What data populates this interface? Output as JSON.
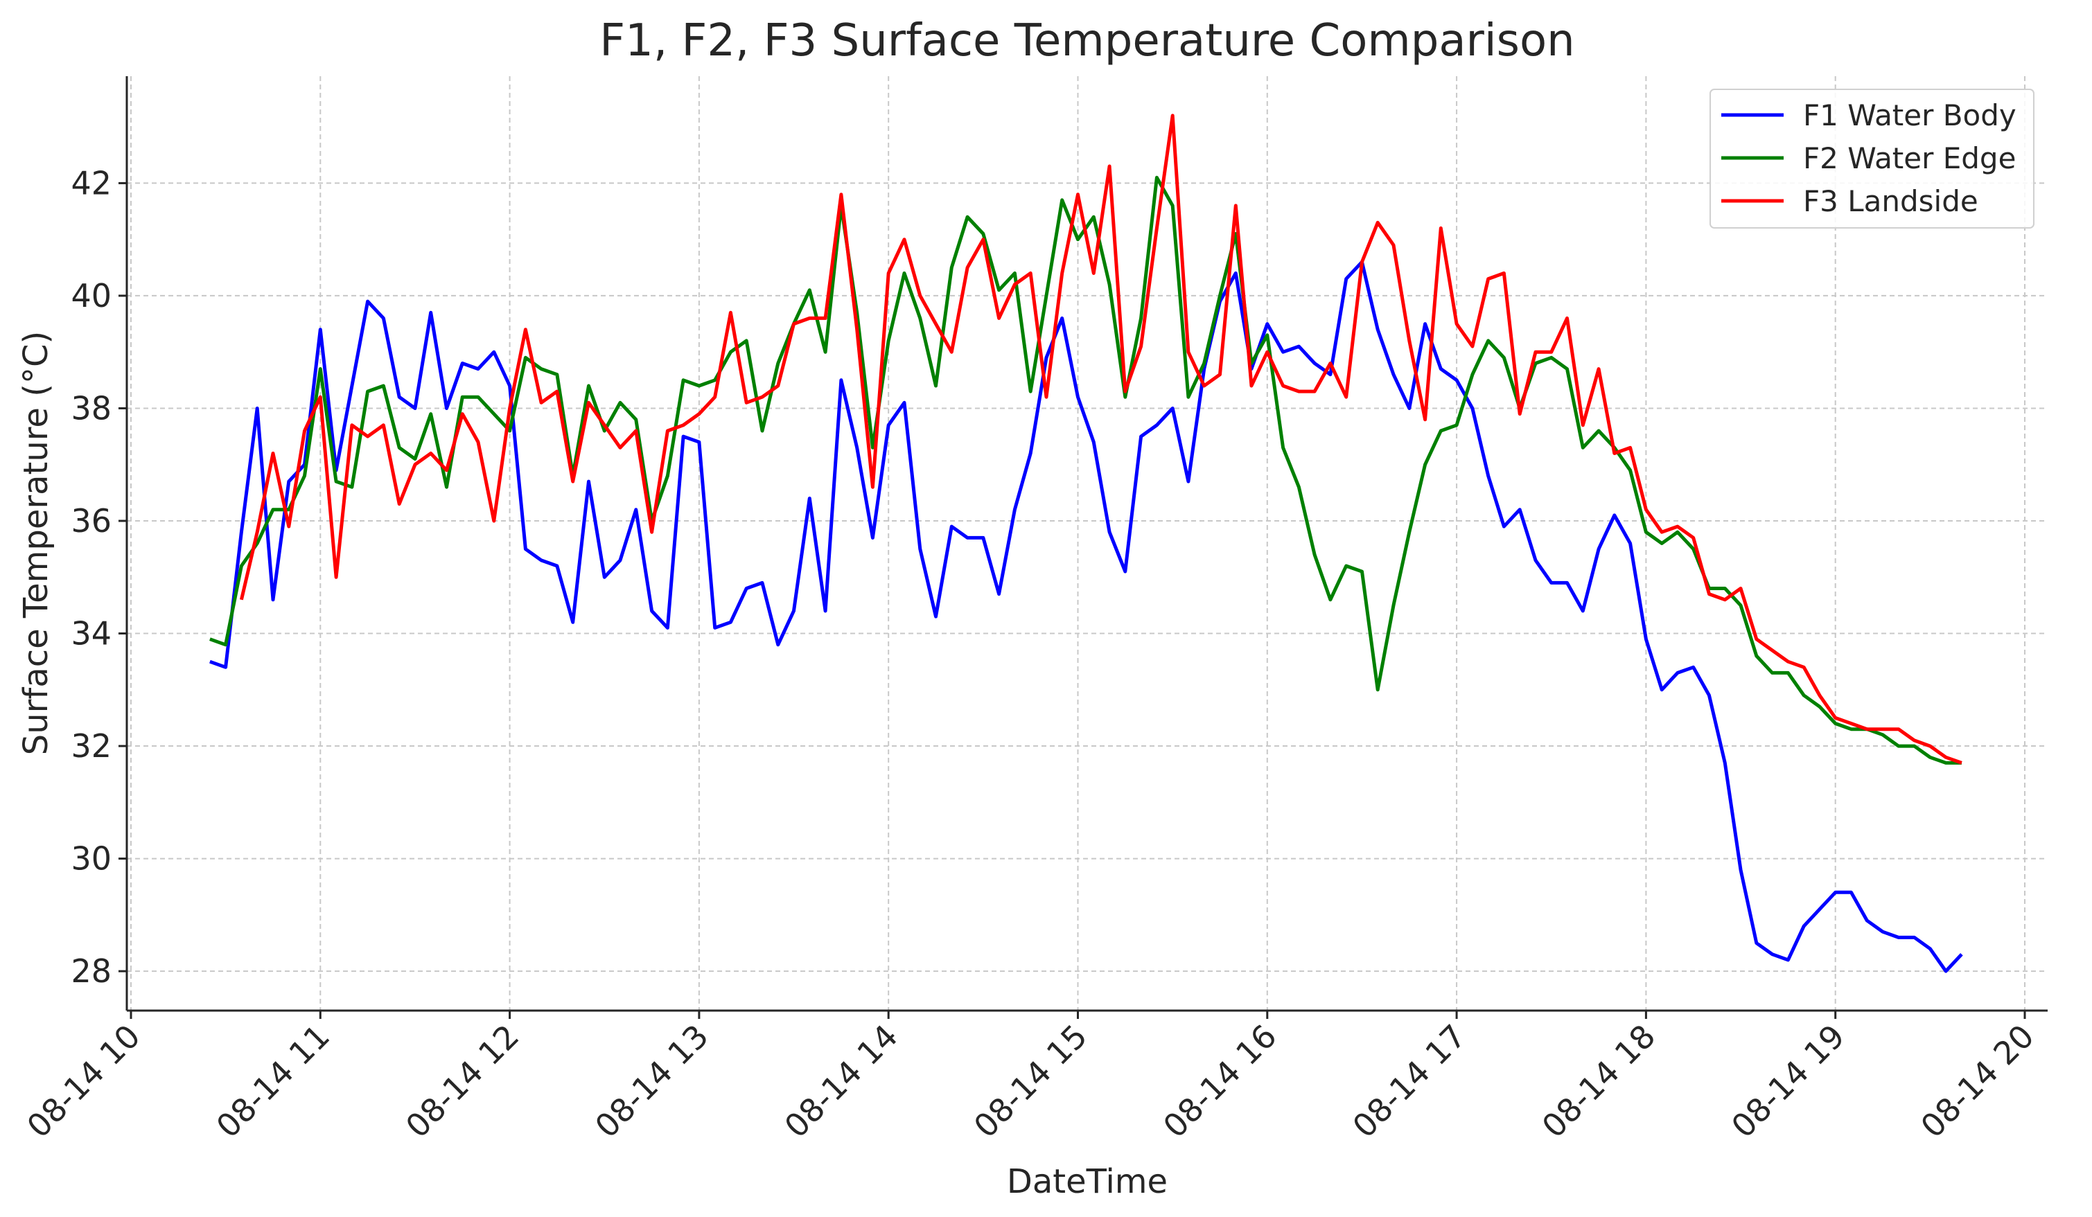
{
  "chart_data": {
    "type": "line",
    "title": "F1, F2, F3 Surface Temperature Comparison",
    "xlabel": "DateTime",
    "ylabel": "Surface Temperature (°C)",
    "xlim": [
      "08-14 10:00",
      "08-14 20:00"
    ],
    "ylim": [
      27.3,
      43.9
    ],
    "grid": true,
    "legend": "top-right",
    "xticks": [
      "08-14 10",
      "08-14 11",
      "08-14 12",
      "08-14 13",
      "08-14 14",
      "08-14 15",
      "08-14 16",
      "08-14 17",
      "08-14 18",
      "08-14 19",
      "08-14 20"
    ],
    "yticks": [
      "28",
      "30",
      "32",
      "34",
      "36",
      "38",
      "40",
      "42"
    ],
    "x": [
      "10:25",
      "10:30",
      "10:35",
      "10:40",
      "10:45",
      "10:50",
      "10:55",
      "11:00",
      "11:05",
      "11:10",
      "11:15",
      "11:20",
      "11:25",
      "11:30",
      "11:35",
      "11:40",
      "11:45",
      "11:50",
      "11:55",
      "12:00",
      "12:05",
      "12:10",
      "12:15",
      "12:20",
      "12:25",
      "12:30",
      "12:35",
      "12:40",
      "12:45",
      "12:50",
      "12:55",
      "13:00",
      "13:05",
      "13:10",
      "13:15",
      "13:20",
      "13:25",
      "13:30",
      "13:35",
      "13:40",
      "13:45",
      "13:50",
      "13:55",
      "14:00",
      "14:05",
      "14:10",
      "14:15",
      "14:20",
      "14:25",
      "14:30",
      "14:35",
      "14:40",
      "14:45",
      "14:50",
      "14:55",
      "15:00",
      "15:05",
      "15:10",
      "15:15",
      "15:20",
      "15:25",
      "15:30",
      "15:35",
      "15:40",
      "15:45",
      "15:50",
      "15:55",
      "16:00",
      "16:05",
      "16:10",
      "16:15",
      "16:20",
      "16:25",
      "16:30",
      "16:35",
      "16:40",
      "16:45",
      "16:50",
      "16:55",
      "17:00",
      "17:05",
      "17:10",
      "17:15",
      "17:20",
      "17:25",
      "17:30",
      "17:35",
      "17:40",
      "17:45",
      "17:50",
      "17:55",
      "18:00",
      "18:05",
      "18:10",
      "18:15",
      "18:20",
      "18:25",
      "18:30",
      "18:35",
      "18:40",
      "18:45",
      "18:50",
      "18:55",
      "19:00",
      "19:05",
      "19:10",
      "19:15",
      "19:20",
      "19:25",
      "19:30",
      "19:35",
      "19:40"
    ],
    "series": [
      {
        "name": "F1 Water Body",
        "color": "#0000ff",
        "values": [
          33.5,
          33.4,
          35.8,
          38.0,
          34.6,
          36.7,
          37.0,
          39.4,
          36.9,
          38.4,
          39.9,
          39.6,
          38.2,
          38.0,
          39.7,
          38.0,
          38.8,
          38.7,
          39.0,
          38.4,
          35.5,
          35.3,
          35.2,
          34.2,
          36.7,
          35.0,
          35.3,
          36.2,
          34.4,
          34.1,
          37.5,
          37.4,
          34.1,
          34.2,
          34.8,
          34.9,
          33.8,
          34.4,
          36.4,
          34.4,
          38.5,
          37.3,
          35.7,
          37.7,
          38.1,
          35.5,
          34.3,
          35.9,
          35.7,
          35.7,
          34.7,
          36.2,
          37.2,
          38.9,
          39.6,
          38.2,
          37.4,
          35.8,
          35.1,
          37.5,
          37.7,
          38.0,
          36.7,
          38.7,
          39.9,
          40.4,
          38.7,
          39.5,
          39.0,
          39.1,
          38.8,
          38.6,
          40.3,
          40.6,
          39.4,
          38.6,
          38.0,
          39.5,
          38.7,
          38.5,
          38.0,
          36.8,
          35.9,
          36.2,
          35.3,
          34.9,
          34.9,
          34.4,
          35.5,
          36.1,
          35.6,
          33.9,
          33.0,
          33.3,
          33.4,
          32.9,
          31.7,
          29.8,
          28.5,
          28.3,
          28.2,
          28.8,
          29.1,
          29.4,
          29.4,
          28.9,
          28.7,
          28.6,
          28.6,
          28.4,
          28.0,
          28.3
        ]
      },
      {
        "name": "F2 Water Edge",
        "color": "#008000",
        "values": [
          33.9,
          33.8,
          35.2,
          35.6,
          36.2,
          36.2,
          36.8,
          38.7,
          36.7,
          36.6,
          38.3,
          38.4,
          37.3,
          37.1,
          37.9,
          36.6,
          38.2,
          38.2,
          37.9,
          37.6,
          38.9,
          38.7,
          38.6,
          36.8,
          38.4,
          37.6,
          38.1,
          37.8,
          36.0,
          36.8,
          38.5,
          38.4,
          38.5,
          39.0,
          39.2,
          37.6,
          38.8,
          39.5,
          40.1,
          39.0,
          41.6,
          39.7,
          37.3,
          39.2,
          40.4,
          39.6,
          38.4,
          40.5,
          41.4,
          41.1,
          40.1,
          40.4,
          38.3,
          40.0,
          41.7,
          41.0,
          41.4,
          40.2,
          38.2,
          39.6,
          42.1,
          41.6,
          38.2,
          38.8,
          40.0,
          41.1,
          38.8,
          39.3,
          37.3,
          36.6,
          35.4,
          34.6,
          35.2,
          35.1,
          33.0,
          34.5,
          35.8,
          37.0,
          37.6,
          37.7,
          38.6,
          39.2,
          38.9,
          38.0,
          38.8,
          38.9,
          38.7,
          37.3,
          37.6,
          37.3,
          36.9,
          35.8,
          35.6,
          35.8,
          35.5,
          34.8,
          34.8,
          34.5,
          33.6,
          33.3,
          33.3,
          32.9,
          32.7,
          32.4,
          32.3,
          32.3,
          32.2,
          32.0,
          32.0,
          31.8,
          31.7,
          31.7
        ]
      },
      {
        "name": "F3 Landside",
        "color": "#ff0000",
        "values": [
          null,
          null,
          34.6,
          35.8,
          37.2,
          35.9,
          37.6,
          38.2,
          35.0,
          37.7,
          37.5,
          37.7,
          36.3,
          37.0,
          37.2,
          36.9,
          37.9,
          37.4,
          36.0,
          38.0,
          39.4,
          38.1,
          38.3,
          36.7,
          38.1,
          37.7,
          37.3,
          37.6,
          35.8,
          37.6,
          37.7,
          37.9,
          38.2,
          39.7,
          38.1,
          38.2,
          38.4,
          39.5,
          39.6,
          39.6,
          41.8,
          39.4,
          36.6,
          40.4,
          41.0,
          40.0,
          39.5,
          39.0,
          40.5,
          41.0,
          39.6,
          40.2,
          40.4,
          38.2,
          40.4,
          41.8,
          40.4,
          42.3,
          38.3,
          39.1,
          41.2,
          43.2,
          39.0,
          38.4,
          38.6,
          41.6,
          38.4,
          39.0,
          38.4,
          38.3,
          38.3,
          38.8,
          38.2,
          40.6,
          41.3,
          40.9,
          39.2,
          37.8,
          41.2,
          39.5,
          39.1,
          40.3,
          40.4,
          37.9,
          39.0,
          39.0,
          39.6,
          37.7,
          38.7,
          37.2,
          37.3,
          36.2,
          35.8,
          35.9,
          35.7,
          34.7,
          34.6,
          34.8,
          33.9,
          33.7,
          33.5,
          33.4,
          32.9,
          32.5,
          32.4,
          32.3,
          32.3,
          32.3,
          32.1,
          32.0,
          31.8,
          31.7
        ]
      }
    ]
  }
}
